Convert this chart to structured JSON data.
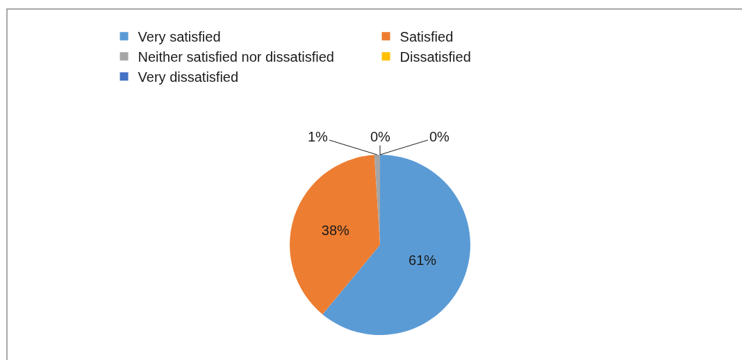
{
  "chart_data": {
    "type": "pie",
    "categories": [
      "Very satisfied",
      "Satisfied",
      "Neither satisfied nor dissatisfied",
      "Dissatisfied",
      "Very dissatisfied"
    ],
    "values": [
      61,
      38,
      1,
      0,
      0
    ],
    "colors": [
      "#5b9bd5",
      "#ed7d31",
      "#a5a5a5",
      "#ffc000",
      "#4472c4"
    ],
    "value_labels": [
      "61%",
      "38%",
      "1%",
      "0%",
      "0%"
    ],
    "legend": "top"
  }
}
